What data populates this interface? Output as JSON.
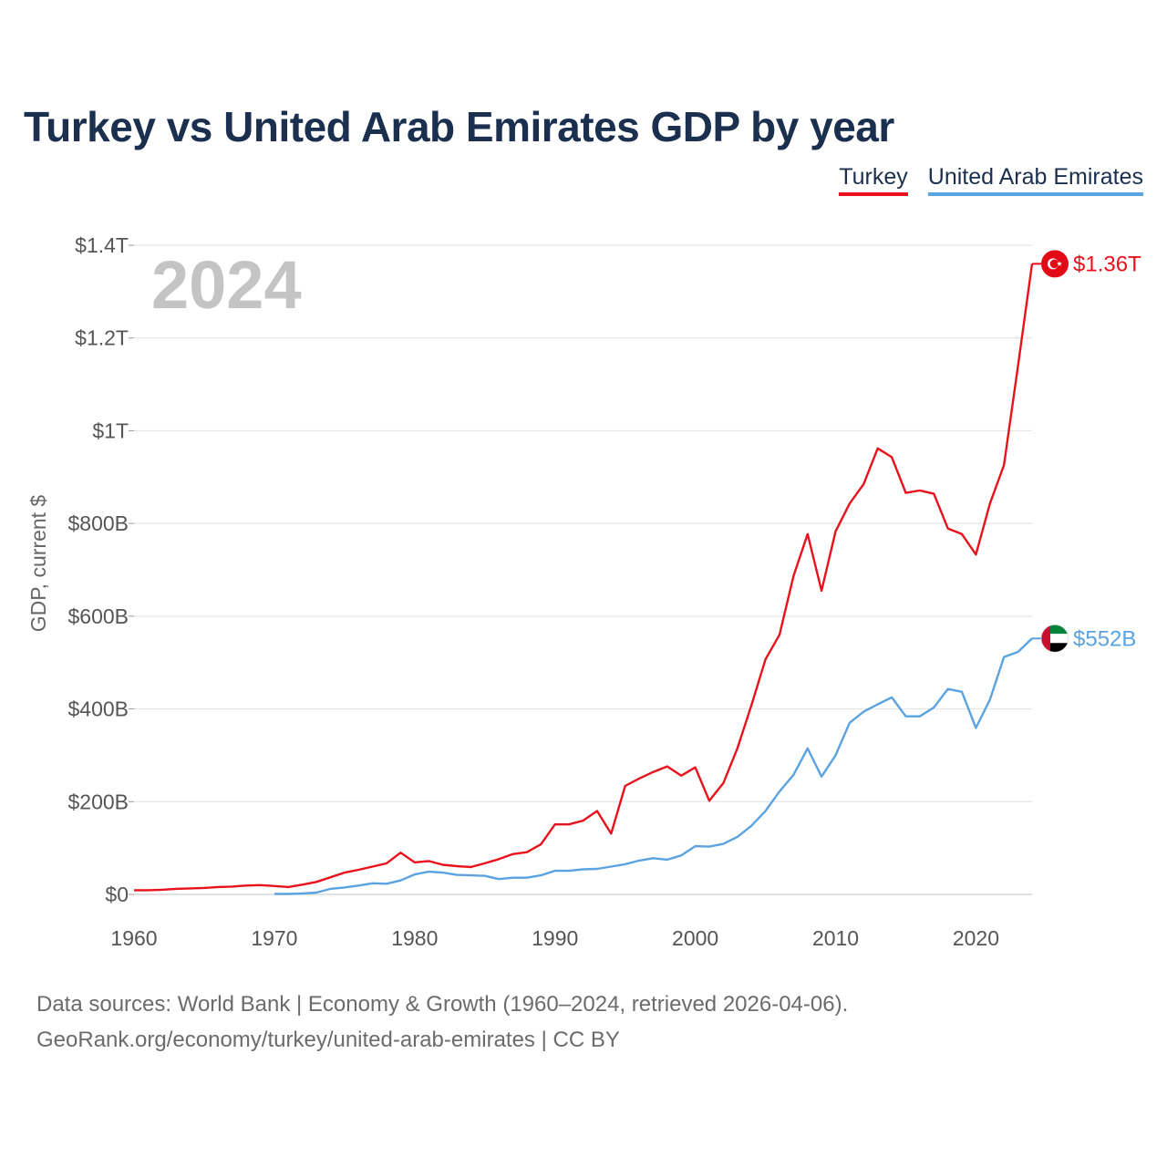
{
  "title": "Turkey vs United Arab Emirates GDP by year",
  "legend": [
    {
      "name": "Turkey",
      "color": "#e8121c"
    },
    {
      "name": "United Arab Emirates",
      "color": "#5ba3e0"
    }
  ],
  "chart_data": {
    "type": "line",
    "title": "Turkey vs United Arab Emirates GDP by year",
    "current_year_label": "2024",
    "ylabel": "GDP, current $",
    "xlabel": "",
    "xlim": [
      1960,
      2024
    ],
    "ylim": [
      0,
      1400
    ],
    "y_unit": "billions USD",
    "x_ticks": [
      1960,
      1970,
      1980,
      1990,
      2000,
      2010,
      2020
    ],
    "y_ticks": [
      {
        "value": 0,
        "label": "$0"
      },
      {
        "value": 200,
        "label": "$200B"
      },
      {
        "value": 400,
        "label": "$400B"
      },
      {
        "value": 600,
        "label": "$600B"
      },
      {
        "value": 800,
        "label": "$800B"
      },
      {
        "value": 1000,
        "label": "$1T"
      },
      {
        "value": 1200,
        "label": "$1.2T"
      },
      {
        "value": 1400,
        "label": "$1.4T"
      }
    ],
    "grid": true,
    "series": [
      {
        "name": "Turkey",
        "color": "#e8121c",
        "end_label": "$1.36T",
        "flag": "turkey-flag",
        "x": [
          1960,
          1961,
          1962,
          1963,
          1964,
          1965,
          1966,
          1967,
          1968,
          1969,
          1970,
          1971,
          1972,
          1973,
          1974,
          1975,
          1976,
          1977,
          1978,
          1979,
          1980,
          1981,
          1982,
          1983,
          1984,
          1985,
          1986,
          1987,
          1988,
          1989,
          1990,
          1991,
          1992,
          1993,
          1994,
          1995,
          1996,
          1997,
          1998,
          1999,
          2000,
          2001,
          2002,
          2003,
          2004,
          2005,
          2006,
          2007,
          2008,
          2009,
          2010,
          2011,
          2012,
          2013,
          2014,
          2015,
          2016,
          2017,
          2018,
          2019,
          2020,
          2021,
          2022,
          2023,
          2024
        ],
        "values": [
          9,
          9,
          10,
          12,
          13,
          14,
          16,
          17,
          19,
          20,
          18,
          16,
          21,
          27,
          37,
          47,
          53,
          60,
          67,
          90,
          69,
          72,
          64,
          61,
          59,
          67,
          76,
          87,
          91,
          108,
          151,
          151,
          159,
          180,
          131,
          234,
          250,
          264,
          276,
          256,
          274,
          202,
          240,
          315,
          408,
          507,
          560,
          687,
          777,
          655,
          783,
          843,
          885,
          962,
          943,
          866,
          871,
          864,
          789,
          777,
          733,
          843,
          926,
          1140,
          1360
        ]
      },
      {
        "name": "United Arab Emirates",
        "color": "#5ba3e0",
        "end_label": "$552B",
        "flag": "uae-flag",
        "x": [
          1970,
          1971,
          1972,
          1973,
          1974,
          1975,
          1976,
          1977,
          1978,
          1979,
          1980,
          1981,
          1982,
          1983,
          1984,
          1985,
          1986,
          1987,
          1988,
          1989,
          1990,
          1991,
          1992,
          1993,
          1994,
          1995,
          1996,
          1997,
          1998,
          1999,
          2000,
          2001,
          2002,
          2003,
          2004,
          2005,
          2006,
          2007,
          2008,
          2009,
          2010,
          2011,
          2012,
          2013,
          2014,
          2015,
          2016,
          2017,
          2018,
          2019,
          2020,
          2021,
          2022,
          2023,
          2024
        ],
        "values": [
          1,
          1,
          2,
          4,
          12,
          15,
          19,
          24,
          23,
          30,
          43,
          49,
          47,
          42,
          41,
          40,
          33,
          36,
          36,
          41,
          51,
          51,
          54,
          55,
          60,
          65,
          73,
          78,
          75,
          84,
          104,
          103,
          109,
          124,
          148,
          180,
          222,
          258,
          315,
          254,
          300,
          370,
          394,
          410,
          425,
          384,
          384,
          403,
          443,
          437,
          359,
          420,
          512,
          523,
          552
        ]
      }
    ]
  },
  "source": {
    "line1": "Data sources: World Bank | Economy & Growth (1960–2024, retrieved 2026-04-06).",
    "line2": "GeoRank.org/economy/turkey/united-arab-emirates | CC BY"
  }
}
